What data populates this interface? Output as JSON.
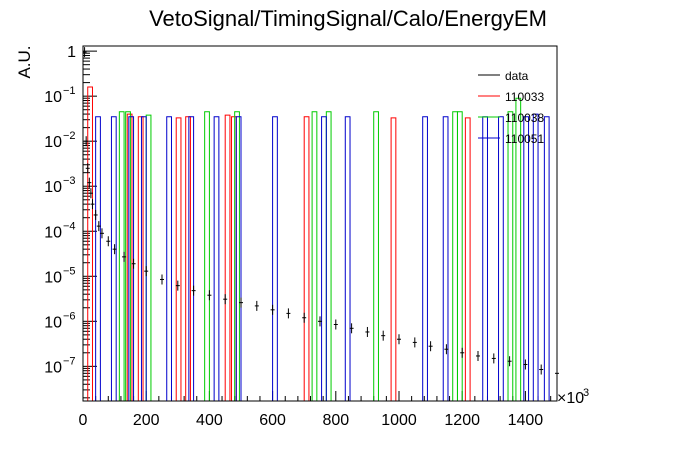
{
  "chart_data": {
    "type": "histogram",
    "title": "VetoSignal/TimingSignal/Calo/EnergyEM",
    "ylabel": "A.U.",
    "xlabel": "",
    "x_multiplier_label": "×10",
    "x_multiplier_exp": "3",
    "xlim": [
      0,
      1500
    ],
    "ylim": [
      1.7e-08,
      1.3
    ],
    "yscale": "log",
    "x_ticks": [
      0,
      200,
      400,
      600,
      800,
      1000,
      1200,
      1400
    ],
    "y_ticks": [
      {
        "base": "10",
        "exp": "−7",
        "value": 1e-07
      },
      {
        "base": "10",
        "exp": "−6",
        "value": 1e-06
      },
      {
        "base": "10",
        "exp": "−5",
        "value": 1e-05
      },
      {
        "base": "10",
        "exp": "−4",
        "value": 0.0001
      },
      {
        "base": "10",
        "exp": "−3",
        "value": 0.001
      },
      {
        "base": "10",
        "exp": "−2",
        "value": 0.01
      },
      {
        "base": "10",
        "exp": "−1",
        "value": 0.1
      },
      {
        "base": "1",
        "exp": "",
        "value": 1
      }
    ],
    "legend_position": "top-right",
    "series": [
      {
        "name": "data",
        "color": "#000000",
        "kind": "points",
        "points": [
          [
            5,
            0.95
          ],
          [
            10,
            0.01
          ],
          [
            15,
            0.0025
          ],
          [
            20,
            0.0012
          ],
          [
            25,
            0.0007
          ],
          [
            30,
            0.0004
          ],
          [
            40,
            0.00023
          ],
          [
            50,
            0.00013
          ],
          [
            60,
            9e-05
          ],
          [
            80,
            6e-05
          ],
          [
            100,
            4e-05
          ],
          [
            130,
            2.7e-05
          ],
          [
            160,
            1.9e-05
          ],
          [
            200,
            1.3e-05
          ],
          [
            250,
            8.5e-06
          ],
          [
            300,
            6.2e-06
          ],
          [
            350,
            4.8e-06
          ],
          [
            400,
            3.8e-06
          ],
          [
            450,
            3.1e-06
          ],
          [
            500,
            2.6e-06
          ],
          [
            550,
            2.2e-06
          ],
          [
            600,
            1.8e-06
          ],
          [
            650,
            1.5e-06
          ],
          [
            700,
            1.2e-06
          ],
          [
            750,
            1e-06
          ],
          [
            800,
            8.5e-07
          ],
          [
            850,
            7e-07
          ],
          [
            900,
            5.8e-07
          ],
          [
            950,
            4.8e-07
          ],
          [
            1000,
            4e-07
          ],
          [
            1050,
            3.4e-07
          ],
          [
            1100,
            2.8e-07
          ],
          [
            1150,
            2.4e-07
          ],
          [
            1200,
            2e-07
          ],
          [
            1250,
            1.7e-07
          ],
          [
            1300,
            1.5e-07
          ],
          [
            1350,
            1.3e-07
          ],
          [
            1400,
            1.1e-07
          ],
          [
            1450,
            8.5e-08
          ],
          [
            1500,
            7e-08
          ]
        ]
      },
      {
        "name": "110033",
        "color": "#ff0000",
        "kind": "bins",
        "bin_width": 15,
        "bins": [
          [
            15,
            0.16
          ],
          [
            140,
            0.04
          ],
          [
            175,
            0.035
          ],
          [
            295,
            0.033
          ],
          [
            325,
            0.035
          ],
          [
            450,
            0.038
          ],
          [
            470,
            0.035
          ],
          [
            700,
            0.035
          ],
          [
            975,
            0.033
          ],
          [
            1210,
            0.033
          ]
        ]
      },
      {
        "name": "110038",
        "color": "#00cc00",
        "kind": "bins",
        "bin_width": 15,
        "bins": [
          [
            115,
            0.045
          ],
          [
            135,
            0.045
          ],
          [
            200,
            0.038
          ],
          [
            385,
            0.045
          ],
          [
            480,
            0.045
          ],
          [
            725,
            0.045
          ],
          [
            770,
            0.045
          ],
          [
            920,
            0.045
          ],
          [
            1170,
            0.045
          ],
          [
            1185,
            0.045
          ],
          [
            1345,
            0.045
          ],
          [
            1370,
            0.09
          ]
        ]
      },
      {
        "name": "110051",
        "color": "#0000cc",
        "kind": "bins",
        "bin_width": 15,
        "bins": [
          [
            40,
            0.035
          ],
          [
            90,
            0.035
          ],
          [
            145,
            0.035
          ],
          [
            185,
            0.035
          ],
          [
            265,
            0.035
          ],
          [
            335,
            0.035
          ],
          [
            415,
            0.035
          ],
          [
            485,
            0.035
          ],
          [
            600,
            0.035
          ],
          [
            755,
            0.035
          ],
          [
            830,
            0.035
          ],
          [
            1075,
            0.035
          ],
          [
            1140,
            0.035
          ],
          [
            1265,
            0.035
          ],
          [
            1315,
            0.035
          ],
          [
            1395,
            0.035
          ],
          [
            1425,
            0.04
          ],
          [
            1460,
            0.035
          ]
        ]
      }
    ]
  }
}
